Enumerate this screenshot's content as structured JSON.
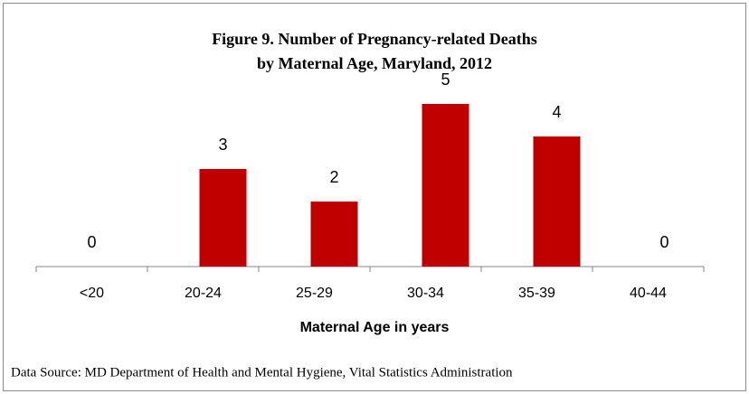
{
  "chart_data": {
    "type": "bar",
    "title": [
      "Figure 9. Number of Pregnancy-related Deaths",
      "by Maternal Age, Maryland, 2012"
    ],
    "categories": [
      "<20",
      "20-24",
      "25-29",
      "30-34",
      "35-39",
      "40-44"
    ],
    "values": [
      0,
      3,
      2,
      5,
      4,
      0
    ],
    "color": "#c00000",
    "x_label": "Maternal Age in years",
    "source": "Data Source: MD Department of Health and Mental Hygiene, Vital Statistics Administration"
  }
}
